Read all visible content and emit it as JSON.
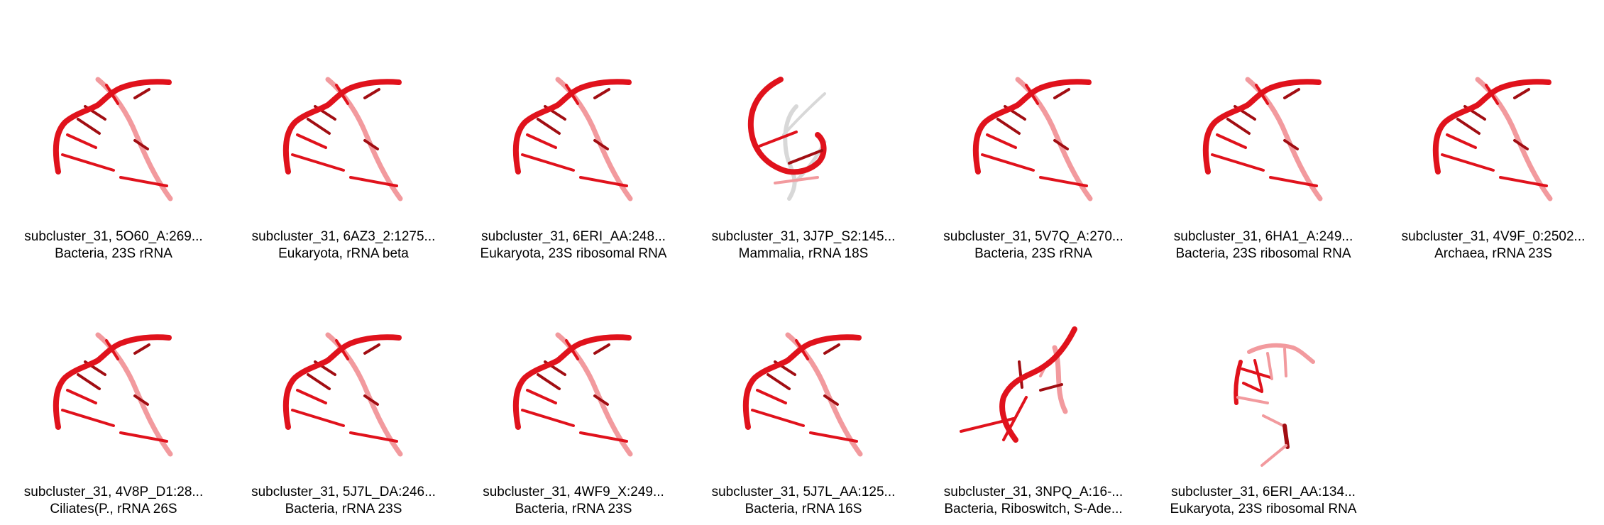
{
  "colors": {
    "backbone": "#e0121c",
    "backbone_dark": "#a10d12",
    "backbone_light": "#f29a9e",
    "ghost": "#d8d8d8",
    "text": "#000000",
    "background": "#ffffff"
  },
  "tiles": [
    {
      "id_line": "subcluster_31, 5O60_A:269...",
      "taxon_line": "Bacteria, 23S rRNA",
      "shape": "arc"
    },
    {
      "id_line": "subcluster_31, 6AZ3_2:1275...",
      "taxon_line": "Eukaryota, rRNA beta",
      "shape": "arc"
    },
    {
      "id_line": "subcluster_31, 6ERI_AA:248...",
      "taxon_line": "Eukaryota, 23S ribosomal RNA",
      "shape": "arc"
    },
    {
      "id_line": "subcluster_31, 3J7P_S2:145...",
      "taxon_line": "Mammalia, rRNA 18S",
      "shape": "loop"
    },
    {
      "id_line": "subcluster_31, 5V7Q_A:270...",
      "taxon_line": "Bacteria, 23S rRNA",
      "shape": "arc"
    },
    {
      "id_line": "subcluster_31, 6HA1_A:249...",
      "taxon_line": "Bacteria, 23S ribosomal RNA",
      "shape": "arc"
    },
    {
      "id_line": "subcluster_31, 4V9F_0:2502...",
      "taxon_line": "Archaea, rRNA 23S",
      "shape": "arc"
    },
    {
      "id_line": "subcluster_31, 4V8P_D1:28...",
      "taxon_line": "Ciliates(P., rRNA 26S",
      "shape": "arc"
    },
    {
      "id_line": "subcluster_31, 5J7L_DA:246...",
      "taxon_line": "Bacteria, rRNA 23S",
      "shape": "arc"
    },
    {
      "id_line": "subcluster_31, 4WF9_X:249...",
      "taxon_line": "Bacteria, rRNA 23S",
      "shape": "arc"
    },
    {
      "id_line": "subcluster_31, 5J7L_AA:125...",
      "taxon_line": "Bacteria, rRNA 16S",
      "shape": "arc"
    },
    {
      "id_line": "subcluster_31, 3NPQ_A:16-...",
      "taxon_line": "Bacteria, Riboswitch, S-Ade...",
      "shape": "twist"
    },
    {
      "id_line": "subcluster_31, 6ERI_AA:134...",
      "taxon_line": "Eukaryota, 23S ribosomal RNA",
      "shape": "faint"
    }
  ]
}
